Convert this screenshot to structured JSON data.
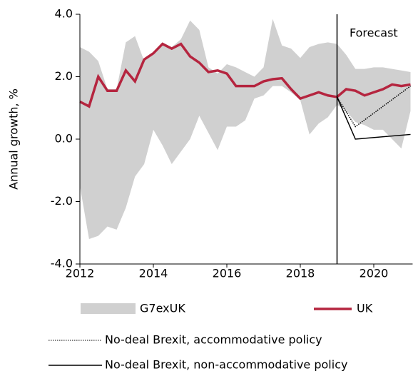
{
  "chart_data": {
    "type": "line",
    "y_label": "Annual growth, %",
    "annotation": "Forecast",
    "forecast_x": 2019,
    "x": [
      2012,
      2012.25,
      2012.5,
      2012.75,
      2013,
      2013.25,
      2013.5,
      2013.75,
      2014,
      2014.25,
      2014.5,
      2014.75,
      2015,
      2015.25,
      2015.5,
      2015.75,
      2016,
      2016.25,
      2016.5,
      2016.75,
      2017,
      2017.25,
      2017.5,
      2017.75,
      2018,
      2018.25,
      2018.5,
      2018.75,
      2019,
      2019.25,
      2019.5,
      2019.75,
      2020,
      2020.25,
      2020.5,
      2020.75,
      2021
    ],
    "series": [
      {
        "name": "G7exUK",
        "color": "#d0d0d0",
        "kind": "range",
        "high": [
          2.95,
          2.8,
          2.5,
          1.6,
          1.6,
          3.1,
          3.3,
          2.5,
          2.8,
          3.1,
          2.95,
          3.2,
          3.8,
          3.5,
          2.3,
          2.1,
          2.4,
          2.3,
          2.15,
          2.0,
          2.3,
          3.85,
          3.0,
          2.9,
          2.6,
          2.95,
          3.05,
          3.1,
          3.05,
          2.7,
          2.25,
          2.25,
          2.3,
          2.3,
          2.25,
          2.2,
          2.15
        ],
        "low": [
          -1.5,
          -3.2,
          -3.1,
          -2.8,
          -2.9,
          -2.2,
          -1.2,
          -0.8,
          0.3,
          -0.2,
          -0.8,
          -0.4,
          0.0,
          0.75,
          0.2,
          -0.35,
          0.4,
          0.4,
          0.6,
          1.3,
          1.4,
          1.7,
          1.7,
          1.5,
          1.25,
          0.15,
          0.5,
          0.7,
          1.1,
          0.9,
          0.55,
          0.45,
          0.3,
          0.3,
          0.0,
          -0.3,
          0.9
        ]
      },
      {
        "name": "UK",
        "color": "#b5253f",
        "kind": "line",
        "values": [
          1.2,
          1.05,
          2.0,
          1.55,
          1.55,
          2.2,
          1.85,
          2.55,
          2.75,
          3.05,
          2.9,
          3.05,
          2.65,
          2.45,
          2.15,
          2.2,
          2.1,
          1.7,
          1.7,
          1.7,
          1.85,
          1.92,
          1.95,
          1.6,
          1.3,
          1.4,
          1.5,
          1.4,
          1.35,
          1.6,
          1.55,
          1.4,
          1.5,
          1.6,
          1.75,
          1.7,
          1.75
        ]
      },
      {
        "name": "No-deal Brexit, accommodative policy",
        "color": "#000000",
        "kind": "line",
        "dash": "dotted",
        "x": [
          2019,
          2019.5,
          2021
        ],
        "values": [
          1.35,
          0.4,
          1.7
        ]
      },
      {
        "name": "No-deal Brexit, non-accommodative policy",
        "color": "#000000",
        "kind": "line",
        "x": [
          2019,
          2019.5,
          2021
        ],
        "values": [
          1.35,
          0.0,
          0.15
        ]
      }
    ],
    "xlim": [
      2012,
      2021
    ],
    "xticks": [
      2012,
      2014,
      2016,
      2018,
      2020
    ],
    "ylim": [
      -4,
      4
    ],
    "yticks": [
      {
        "value": -4,
        "label": "-4.0"
      },
      {
        "value": -2,
        "label": "-2.0"
      },
      {
        "value": 0,
        "label": "0.0"
      },
      {
        "value": 2,
        "label": "2.0"
      },
      {
        "value": 4,
        "label": "4.0"
      }
    ],
    "grid": false
  }
}
